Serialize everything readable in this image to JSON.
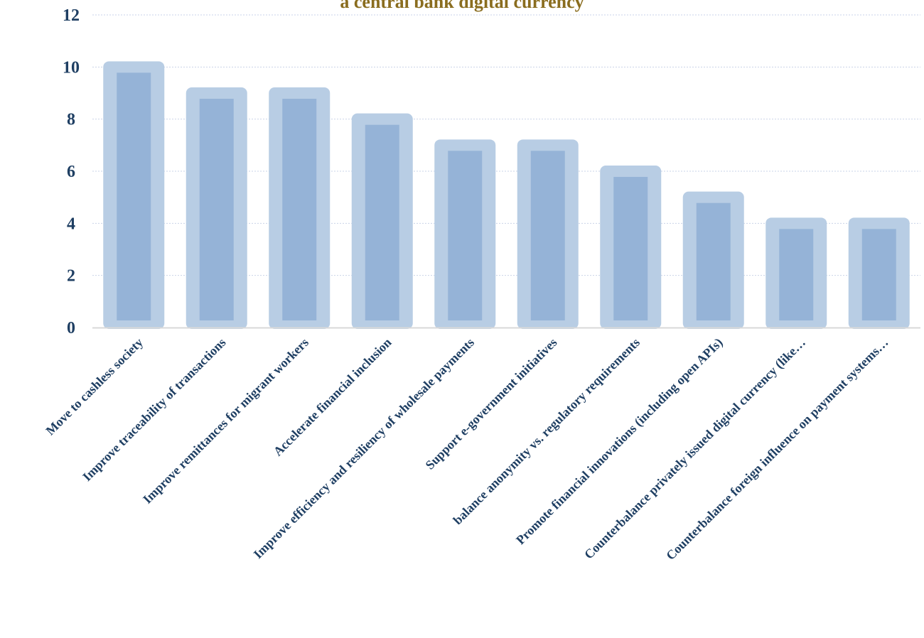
{
  "chart_data": {
    "type": "bar",
    "title": "a central bank digital currency",
    "xlabel": "",
    "ylabel": "",
    "ylim": [
      0,
      12
    ],
    "yticks": [
      0,
      2,
      4,
      6,
      8,
      10,
      12
    ],
    "grid": true,
    "legend": "none",
    "categories": [
      "Move to cashless society",
      "Improve traceability of transactions",
      "Improve remittances for migrant workers",
      "Accelerate financial inclusion",
      "Improve efficiency and resiliency of wholesale payments",
      "Support e-government initiatives",
      "balance anonymity vs. regulatory requirements",
      "Promote financial innovations (including open APIs)",
      "Counterbalance privately issued digital currency (like…",
      "Counterbalance foreign influence on payment systems…"
    ],
    "values": [
      10,
      9,
      9,
      8,
      7,
      7,
      6,
      5,
      4,
      4
    ]
  },
  "colors": {
    "bar_outer": "#b8cde4",
    "bar_inner": "#95b3d7",
    "title": "#8a6d1f",
    "axis_text": "#1f3f63",
    "grid": "#c9d3e8",
    "baseline": "#d9d9d9"
  }
}
